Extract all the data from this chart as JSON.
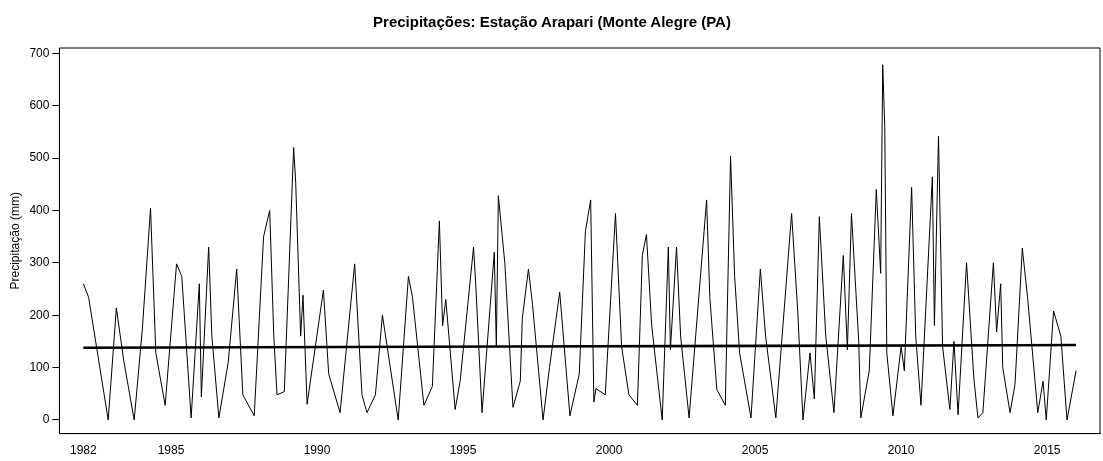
{
  "chart_data": {
    "type": "line",
    "title": "Precipitações: Estação Arapari (Monte Alegre (PA)",
    "ylabel": "Precipitação (mm)",
    "xlim": [
      1981.18,
      2016.81
    ],
    "xticks": [
      1982,
      1985,
      1990,
      1995,
      2000,
      2005,
      2010,
      2015
    ],
    "ylim": [
      -26,
      710
    ],
    "yticks": [
      0,
      100,
      200,
      300,
      400,
      500,
      600,
      700
    ],
    "grid": false,
    "legend": false,
    "marker": "none",
    "line_style": "solid",
    "series": [
      {
        "color": "#000000",
        "x": [
          1982.0,
          1982.18,
          1982.85,
          1983.13,
          1983.38,
          1983.74,
          1984.02,
          1984.3,
          1984.48,
          1984.8,
          1985.19,
          1985.37,
          1985.69,
          1985.97,
          1986.04,
          1986.29,
          1986.4,
          1986.64,
          1986.96,
          1987.25,
          1987.46,
          1987.85,
          1988.17,
          1988.38,
          1988.52,
          1988.63,
          1988.88,
          1989.2,
          1989.27,
          1989.44,
          1989.52,
          1989.66,
          1990.22,
          1990.4,
          1990.79,
          1991.29,
          1991.54,
          1991.71,
          1992.0,
          1992.24,
          1992.78,
          1993.13,
          1993.27,
          1993.66,
          1993.95,
          1994.19,
          1994.3,
          1994.41,
          1994.73,
          1994.9,
          1995.36,
          1995.44,
          1995.65,
          1996.07,
          1996.14,
          1996.21,
          1996.43,
          1996.71,
          1996.96,
          1997.03,
          1997.24,
          1997.38,
          1997.74,
          1997.96,
          1998.31,
          1998.66,
          1998.98,
          1999.19,
          1999.37,
          1999.48,
          1999.55,
          1999.87,
          2000.22,
          2000.43,
          2000.68,
          2000.97,
          2001.14,
          2001.28,
          2001.46,
          2001.82,
          2002.03,
          2002.1,
          2002.31,
          2002.45,
          2002.74,
          2003.34,
          2003.45,
          2003.69,
          2003.98,
          2004.16,
          2004.3,
          2004.47,
          2004.86,
          2005.18,
          2005.36,
          2005.71,
          2006.25,
          2006.46,
          2006.64,
          2006.88,
          2007.03,
          2007.2,
          2007.42,
          2007.7,
          2008.02,
          2008.16,
          2008.3,
          2008.55,
          2008.62,
          2008.91,
          2009.15,
          2009.3,
          2009.37,
          2009.44,
          2009.51,
          2009.72,
          2010.0,
          2010.11,
          2010.36,
          2010.5,
          2010.68,
          2011.07,
          2011.14,
          2011.28,
          2011.42,
          2011.67,
          2011.81,
          2011.95,
          2012.24,
          2012.49,
          2012.63,
          2012.8,
          2013.16,
          2013.27,
          2013.41,
          2013.48,
          2013.73,
          2013.9,
          2014.15,
          2014.33,
          2014.68,
          2014.86,
          2014.97,
          2015.22,
          2015.47,
          2015.68,
          2015.99
        ],
        "values": [
          260,
          234,
          0,
          214,
          114,
          0,
          174,
          404,
          128,
          28,
          298,
          274,
          4,
          260,
          44,
          330,
          160,
          4,
          110,
          288,
          48,
          8,
          350,
          400,
          160,
          48,
          54,
          520,
          454,
          160,
          238,
          30,
          248,
          88,
          14,
          298,
          48,
          14,
          48,
          200,
          0,
          274,
          234,
          28,
          64,
          380,
          180,
          230,
          20,
          74,
          330,
          254,
          14,
          320,
          140,
          428,
          300,
          24,
          74,
          194,
          288,
          220,
          0,
          100,
          244,
          8,
          88,
          360,
          420,
          34,
          60,
          48,
          394,
          140,
          48,
          28,
          314,
          354,
          180,
          0,
          330,
          134,
          330,
          160,
          4,
          420,
          234,
          58,
          28,
          504,
          274,
          128,
          4,
          288,
          160,
          4,
          394,
          208,
          0,
          128,
          40,
          388,
          160,
          14,
          314,
          134,
          394,
          148,
          4,
          94,
          440,
          280,
          678,
          560,
          128,
          8,
          140,
          94,
          444,
          160,
          28,
          464,
          180,
          542,
          140,
          20,
          150,
          10,
          300,
          80,
          4,
          14,
          300,
          168,
          260,
          100,
          14,
          68,
          328,
          234,
          14,
          74,
          0,
          208,
          160,
          0,
          94
        ]
      },
      {
        "type": "line",
        "color": "#000000",
        "x": [
          1982.0,
          2015.99
        ],
        "values": [
          138,
          143
        ]
      }
    ]
  }
}
